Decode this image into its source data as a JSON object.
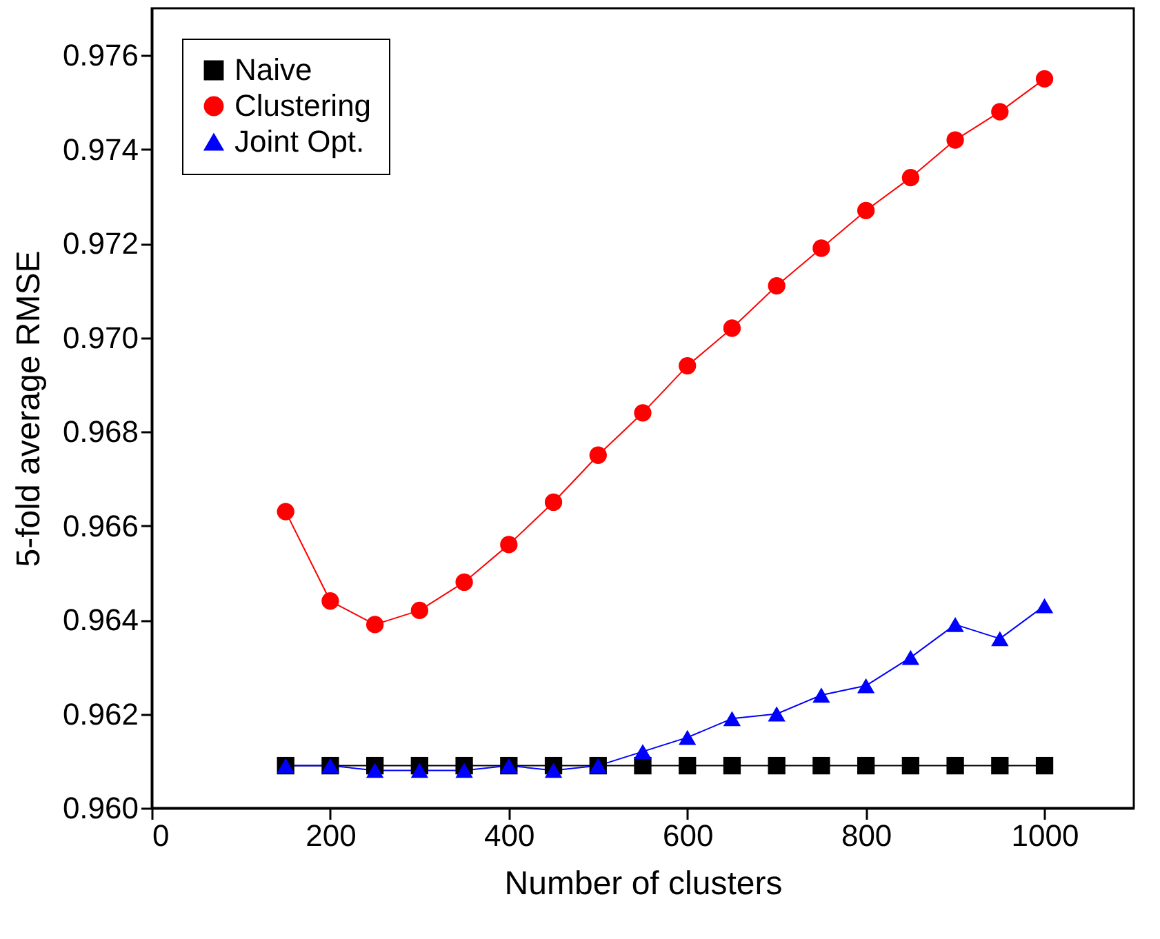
{
  "chart_data": {
    "type": "line",
    "xlabel": "Number of clusters",
    "ylabel": "5-fold average RMSE",
    "x": [
      150,
      200,
      250,
      300,
      350,
      400,
      450,
      500,
      550,
      600,
      650,
      700,
      750,
      800,
      850,
      900,
      950,
      1000
    ],
    "series": [
      {
        "name": "Naive",
        "color": "#000000",
        "marker": "square",
        "values": [
          0.9609,
          0.9609,
          0.9609,
          0.9609,
          0.9609,
          0.9609,
          0.9609,
          0.9609,
          0.9609,
          0.9609,
          0.9609,
          0.9609,
          0.9609,
          0.9609,
          0.9609,
          0.9609,
          0.9609,
          0.9609
        ]
      },
      {
        "name": "Clustering",
        "color": "#ff0000",
        "marker": "circle",
        "values": [
          0.9663,
          0.9644,
          0.9639,
          0.9642,
          0.9648,
          0.9656,
          0.9665,
          0.9675,
          0.9684,
          0.9694,
          0.9702,
          0.9711,
          0.9719,
          0.9727,
          0.9734,
          0.9742,
          0.9748,
          0.9755
        ]
      },
      {
        "name": "Joint Opt.",
        "color": "#0000ff",
        "marker": "triangle",
        "values": [
          0.9609,
          0.9609,
          0.9608,
          0.9608,
          0.9608,
          0.9609,
          0.9608,
          0.9609,
          0.9612,
          0.9615,
          0.9619,
          0.962,
          0.9624,
          0.9626,
          0.9632,
          0.9639,
          0.9636,
          0.9643
        ]
      }
    ],
    "xlim": [
      0,
      1100
    ],
    "xticks": [
      0,
      200,
      400,
      600,
      800,
      1000
    ],
    "ylim": [
      0.96,
      0.977
    ],
    "yticks": [
      {
        "value": 0.96,
        "label": "0.960"
      },
      {
        "value": 0.962,
        "label": "0.962"
      },
      {
        "value": 0.964,
        "label": "0.964"
      },
      {
        "value": 0.966,
        "label": "0.966"
      },
      {
        "value": 0.968,
        "label": "0.968"
      },
      {
        "value": 0.97,
        "label": "0.970"
      },
      {
        "value": 0.972,
        "label": "0.972"
      },
      {
        "value": 0.974,
        "label": "0.974"
      },
      {
        "value": 0.976,
        "label": "0.976"
      }
    ],
    "grid": false,
    "legend": "top left",
    "line_style": "solid"
  }
}
